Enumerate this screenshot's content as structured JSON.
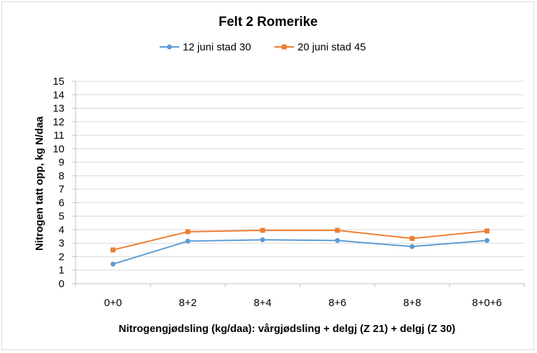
{
  "chart_data": {
    "type": "line",
    "title": "Felt 2 Romerike",
    "xlabel": "Nitrogengjødsling (kg/daa): vårgjødsling + delgj (Z 21) + delgj (Z 30)",
    "ylabel": "Nitrogen tatt opp, kg N/daa",
    "categories": [
      "0+0",
      "8+2",
      "8+4",
      "8+6",
      "8+8",
      "8+0+6"
    ],
    "ylim": [
      0,
      15
    ],
    "yticks": [
      0,
      1,
      2,
      3,
      4,
      5,
      6,
      7,
      8,
      9,
      10,
      11,
      12,
      13,
      14,
      15
    ],
    "grid": true,
    "legend_position": "top",
    "series": [
      {
        "name": "12 juni stad 30",
        "color": "#5b9bd5",
        "marker": "circle",
        "values": [
          1.45,
          3.15,
          3.25,
          3.2,
          2.75,
          3.2
        ]
      },
      {
        "name": "20 juni stad 45",
        "color": "#ed7d31",
        "marker": "square",
        "values": [
          2.5,
          3.85,
          3.95,
          3.95,
          3.35,
          3.9
        ]
      }
    ]
  }
}
